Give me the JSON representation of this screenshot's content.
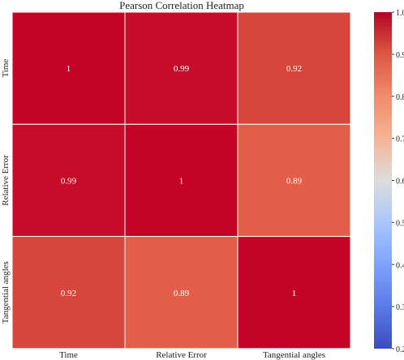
{
  "chart_data": {
    "type": "heatmap",
    "title": "Pearson Correlation Heatmap",
    "row_labels": [
      "Time",
      "Relative Error",
      "Tangential angles"
    ],
    "col_labels": [
      "Time",
      "Relative Error",
      "Tangential angles"
    ],
    "values": [
      [
        1,
        0.99,
        0.92
      ],
      [
        0.99,
        1,
        0.89
      ],
      [
        0.92,
        0.89,
        1
      ]
    ],
    "cell_labels": [
      [
        "1",
        "0.99",
        "0.92"
      ],
      [
        "0.99",
        "1",
        "0.89"
      ],
      [
        "0.92",
        "0.89",
        "1"
      ]
    ],
    "colorbar": {
      "colormap": "coolwarm",
      "range": [
        0.2,
        1.0
      ],
      "ticks": [
        "0.2",
        "0.3",
        "0.4",
        "0.5",
        "0.6",
        "0.7",
        "0.8",
        "0.9",
        "1.0"
      ]
    }
  }
}
